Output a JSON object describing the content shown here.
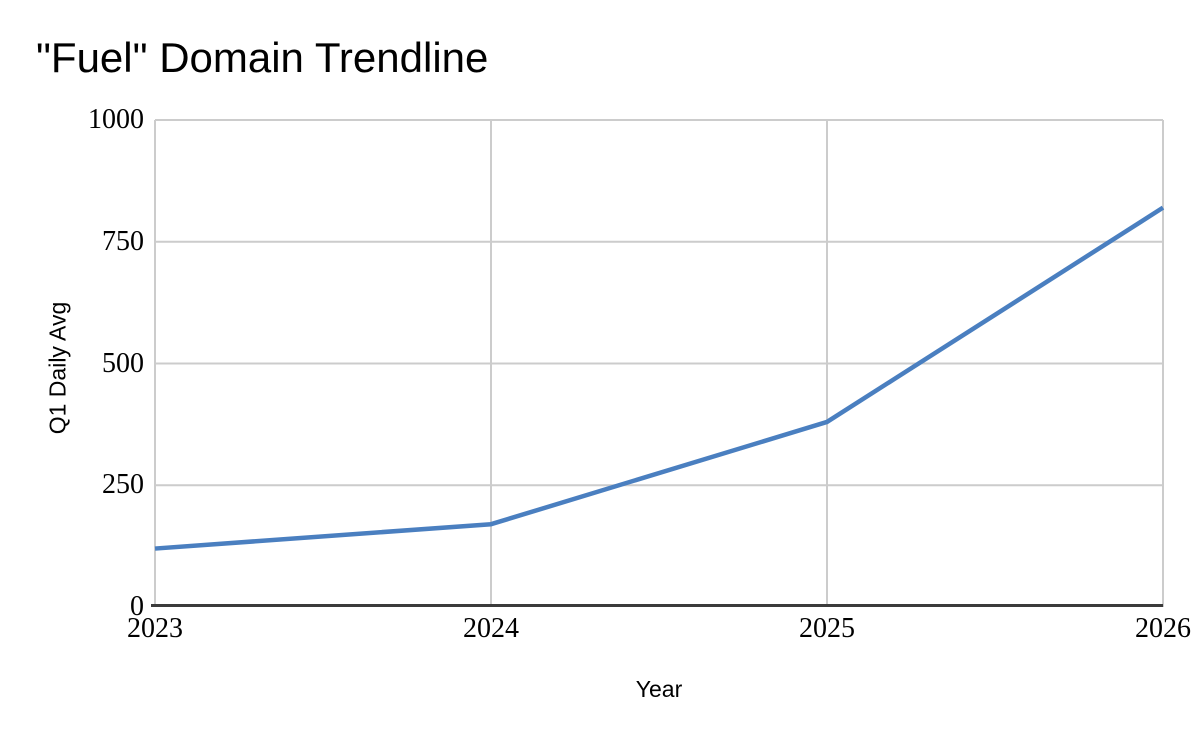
{
  "chart_data": {
    "type": "line",
    "title": "\"Fuel\" Domain Trendline",
    "xlabel": "Year",
    "ylabel": "Q1 Daily Avg",
    "x": [
      2023,
      2024,
      2025,
      2026
    ],
    "series": [
      {
        "name": "Q1 Daily Avg",
        "values": [
          120,
          170,
          380,
          820
        ]
      }
    ],
    "ylim": [
      0,
      1000
    ],
    "yticks": [
      0,
      250,
      500,
      750,
      1000
    ],
    "xticks": [
      "2023",
      "2024",
      "2025",
      "2026"
    ],
    "grid": true,
    "legend_position": "none",
    "colors": {
      "line": "#4a7fc0",
      "gridline": "#cccccc",
      "axis_line": "#3b3b3b",
      "text": "#000000",
      "background": "#ffffff"
    }
  }
}
